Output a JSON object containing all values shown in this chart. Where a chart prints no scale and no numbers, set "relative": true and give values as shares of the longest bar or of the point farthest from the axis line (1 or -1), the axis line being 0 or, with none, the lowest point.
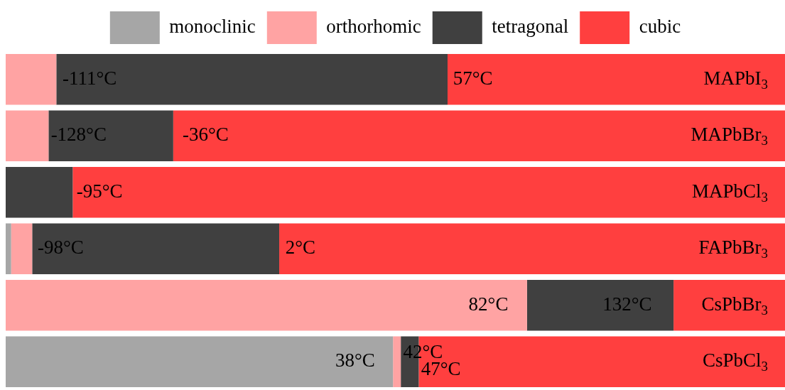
{
  "chart_data": {
    "type": "bar",
    "orientation": "horizontal",
    "stacked": true,
    "relative": true,
    "legend": "top",
    "categories": [
      "MAPbI$_{3}$",
      "MAPbBr$_{3}$",
      "MAPbCl$_{3}$",
      "FAPbBr$_{3}$",
      "CsPbBr$_{3}$",
      "CsPbCl$_{3}$"
    ],
    "series": [
      {
        "name": "monoclinic",
        "color": "#a6a6a6",
        "values": [
          0,
          0,
          0,
          0.007,
          0,
          0.497
        ]
      },
      {
        "name": "orthorhomic",
        "color": "#ffa3a3",
        "values": [
          0.065,
          0.055,
          0,
          0.027,
          0.669,
          0.01
        ]
      },
      {
        "name": "tetragonal",
        "color": "#404040",
        "values": [
          0.502,
          0.16,
          0.086,
          0.317,
          0.188,
          0.023
        ]
      },
      {
        "name": "cubic",
        "color": "#ff3f3f",
        "values": [
          0.433,
          0.785,
          0.914,
          0.649,
          0.143,
          0.47
        ]
      }
    ],
    "annotations": [
      {
        "text": "-111°C",
        "x": 0.073,
        "y": "MAPbI$_{3}$"
      },
      {
        "text": "57°C",
        "x": 0.574,
        "y": "MAPbI$_{3}$"
      },
      {
        "text": "-128°C",
        "x": 0.058,
        "y": "MAPbBr$_{3}$"
      },
      {
        "text": "-36°C",
        "x": 0.227,
        "y": "MAPbBr$_{3}$"
      },
      {
        "text": "-95°C",
        "x": 0.091,
        "y": "MAPbCl$_{3}$"
      },
      {
        "text": "-98°C",
        "x": 0.041,
        "y": "FAPbBr$_{3}$"
      },
      {
        "text": "2°C",
        "x": 0.359,
        "y": "FAPbBr$_{3}$"
      },
      {
        "text": "82°C",
        "x": 0.594,
        "y": "CsPbBr$_{3}$"
      },
      {
        "text": "132°C",
        "x": 0.766,
        "y": "CsPbBr$_{3}$"
      },
      {
        "text": "38°C",
        "x": 0.423,
        "y": "CsPbCl$_{3}$"
      },
      {
        "text": "42°C",
        "x": 0.51,
        "y": "CsPbCl$_{3}$"
      },
      {
        "text": "47°C",
        "x": 0.533,
        "y": "CsPbCl$_{3}$"
      }
    ]
  }
}
